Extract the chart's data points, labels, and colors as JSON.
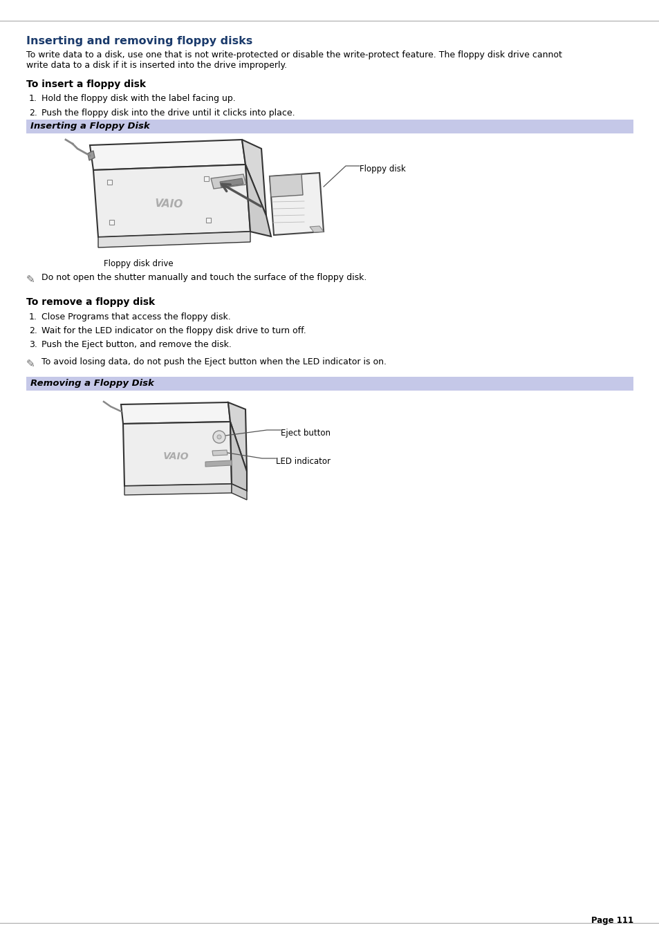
{
  "title": "Inserting and removing floppy disks",
  "title_color": "#1a3a6b",
  "title_fontsize": 11.5,
  "bg_color": "#ffffff",
  "page_number": "Page 111",
  "intro_line1": "To write data to a disk, use one that is not write-protected or disable the write-protect feature. The floppy disk drive cannot",
  "intro_line2": "write data to a disk if it is inserted into the drive improperly.",
  "section1_title": "To insert a floppy disk",
  "insert_steps": [
    "Hold the floppy disk with the label facing up.",
    "Push the floppy disk into the drive until it clicks into place."
  ],
  "insert_caption": "Inserting a Floppy Disk",
  "insert_caption_bg": "#c5c8e8",
  "note1": "Do not open the shutter manually and touch the surface of the floppy disk.",
  "section2_title": "To remove a floppy disk",
  "remove_steps": [
    "Close Programs that access the floppy disk.",
    "Wait for the LED indicator on the floppy disk drive to turn off.",
    "Push the Eject button, and remove the disk."
  ],
  "note2": "To avoid losing data, do not push the Eject button when the LED indicator is on.",
  "remove_caption": "Removing a Floppy Disk",
  "remove_caption_bg": "#c5c8e8",
  "body_fontsize": 9.0,
  "section_fontsize": 10.0,
  "step_fontsize": 9.0,
  "note_fontsize": 9.0,
  "caption_fontsize": 9.5,
  "label_fontsize": 8.5
}
